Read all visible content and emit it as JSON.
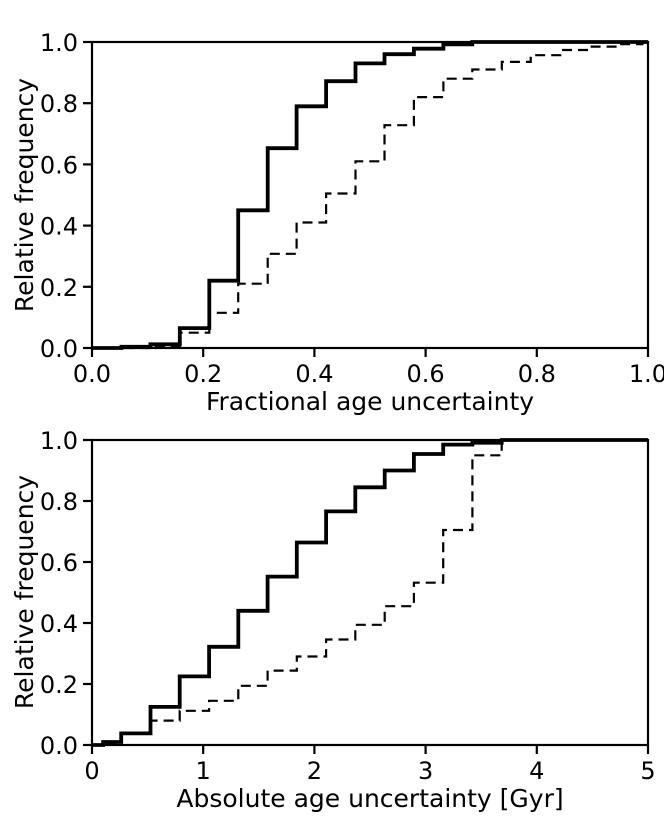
{
  "figure": {
    "background": "#ffffff",
    "line_color": "#000000"
  },
  "chart_data": [
    {
      "type": "line",
      "subtype": "cumulative-step-histogram",
      "title": "",
      "xlabel": "Fractional age uncertainty",
      "ylabel": "Relative frequency",
      "xlim": [
        0.0,
        1.0
      ],
      "ylim": [
        0.0,
        1.0
      ],
      "grid": false,
      "legend": null,
      "xticks": {
        "values": [
          0.0,
          0.2,
          0.4,
          0.6,
          0.8,
          1.0
        ],
        "labels": [
          "0.0",
          "0.2",
          "0.4",
          "0.6",
          "0.8",
          "1.0"
        ]
      },
      "yticks": {
        "values": [
          0.0,
          0.2,
          0.4,
          0.6,
          0.8,
          1.0
        ],
        "labels": [
          "0.0",
          "0.2",
          "0.4",
          "0.6",
          "0.8",
          "1.0"
        ]
      },
      "series": [
        {
          "name": "thick-solid-cdf",
          "style": "solid",
          "line_width": 3.8,
          "color": "#000000",
          "start": [
            0.0,
            0.0
          ],
          "steps": [
            [
              0.053,
              0.004
            ],
            [
              0.105,
              0.012
            ],
            [
              0.158,
              0.065
            ],
            [
              0.211,
              0.22
            ],
            [
              0.263,
              0.45
            ],
            [
              0.316,
              0.653
            ],
            [
              0.368,
              0.79
            ],
            [
              0.421,
              0.872
            ],
            [
              0.474,
              0.93
            ],
            [
              0.526,
              0.96
            ],
            [
              0.579,
              0.978
            ],
            [
              0.632,
              0.992
            ],
            [
              0.684,
              1.0
            ]
          ]
        },
        {
          "name": "thin-dashed-cdf",
          "style": "dashed",
          "line_width": 2.2,
          "dash": [
            10,
            6
          ],
          "color": "#000000",
          "start": [
            0.0,
            0.0
          ],
          "steps": [
            [
              0.105,
              0.004
            ],
            [
              0.158,
              0.05
            ],
            [
              0.211,
              0.115
            ],
            [
              0.263,
              0.21
            ],
            [
              0.316,
              0.308
            ],
            [
              0.368,
              0.41
            ],
            [
              0.421,
              0.505
            ],
            [
              0.474,
              0.61
            ],
            [
              0.526,
              0.728
            ],
            [
              0.579,
              0.82
            ],
            [
              0.632,
              0.88
            ],
            [
              0.684,
              0.91
            ],
            [
              0.737,
              0.935
            ],
            [
              0.789,
              0.957
            ],
            [
              0.842,
              0.974
            ],
            [
              0.895,
              0.985
            ],
            [
              0.947,
              0.993
            ],
            [
              0.99,
              1.0
            ]
          ]
        }
      ]
    },
    {
      "type": "line",
      "subtype": "cumulative-step-histogram",
      "title": "",
      "xlabel": "Absolute age uncertainty [Gyr]",
      "ylabel": "Relative frequency",
      "xlim": [
        0.0,
        5.0
      ],
      "ylim": [
        0.0,
        1.0
      ],
      "grid": false,
      "legend": null,
      "xticks": {
        "values": [
          0,
          1,
          2,
          3,
          4,
          5
        ],
        "labels": [
          "0",
          "1",
          "2",
          "3",
          "4",
          "5"
        ]
      },
      "yticks": {
        "values": [
          0.0,
          0.2,
          0.4,
          0.6,
          0.8,
          1.0
        ],
        "labels": [
          "0.0",
          "0.2",
          "0.4",
          "0.6",
          "0.8",
          "1.0"
        ]
      },
      "series": [
        {
          "name": "thick-solid-cdf",
          "style": "solid",
          "line_width": 3.8,
          "color": "#000000",
          "start": [
            0.0,
            0.0
          ],
          "steps": [
            [
              0.1,
              0.01
            ],
            [
              0.263,
              0.038
            ],
            [
              0.526,
              0.125
            ],
            [
              0.789,
              0.225
            ],
            [
              1.053,
              0.322
            ],
            [
              1.316,
              0.44
            ],
            [
              1.579,
              0.552
            ],
            [
              1.842,
              0.664
            ],
            [
              2.105,
              0.766
            ],
            [
              2.368,
              0.845
            ],
            [
              2.632,
              0.9
            ],
            [
              2.895,
              0.954
            ],
            [
              3.158,
              0.985
            ],
            [
              3.421,
              0.991
            ],
            [
              3.684,
              1.0
            ]
          ]
        },
        {
          "name": "thin-dashed-cdf",
          "style": "dashed",
          "line_width": 2.2,
          "dash": [
            10,
            6
          ],
          "color": "#000000",
          "start": [
            0.0,
            0.0
          ],
          "steps": [
            [
              0.1,
              0.005
            ],
            [
              0.263,
              0.04
            ],
            [
              0.526,
              0.08
            ],
            [
              0.789,
              0.112
            ],
            [
              1.053,
              0.145
            ],
            [
              1.316,
              0.194
            ],
            [
              1.579,
              0.244
            ],
            [
              1.842,
              0.29
            ],
            [
              2.105,
              0.346
            ],
            [
              2.368,
              0.394
            ],
            [
              2.632,
              0.455
            ],
            [
              2.895,
              0.532
            ],
            [
              3.158,
              0.705
            ],
            [
              3.421,
              0.95
            ],
            [
              3.684,
              1.0
            ]
          ]
        }
      ]
    }
  ]
}
